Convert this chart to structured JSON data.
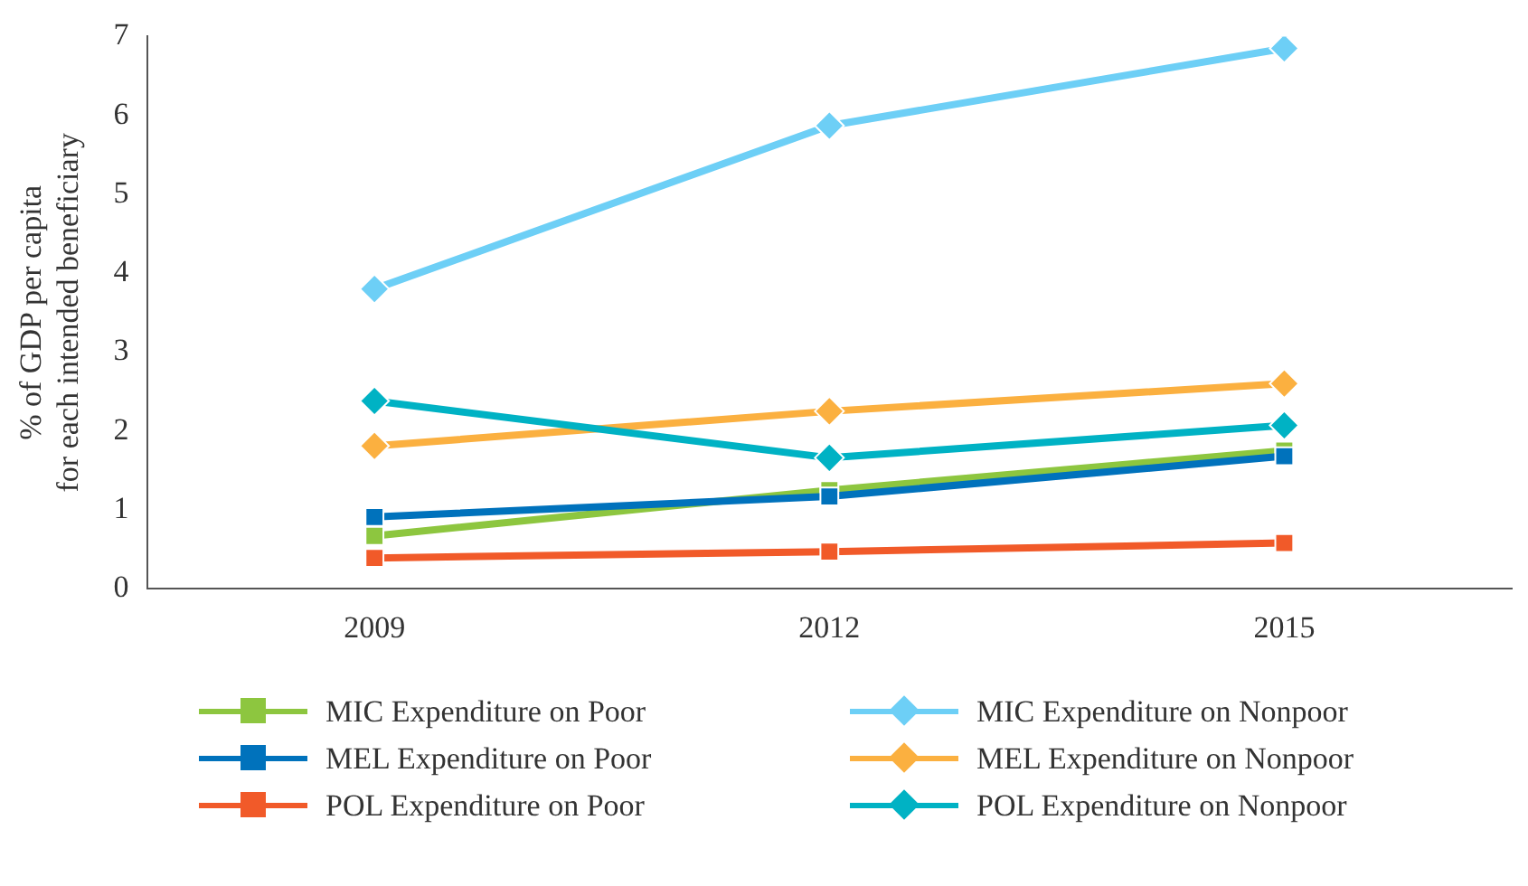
{
  "chart_data": {
    "type": "line",
    "ylabel": "% of GDP per capita\nfor each intended beneficiary",
    "categories": [
      "2009",
      "2012",
      "2015"
    ],
    "ylim": [
      0,
      7
    ],
    "yticks": [
      0,
      1,
      2,
      3,
      4,
      5,
      6,
      7
    ],
    "grid": false,
    "legend": "bottom",
    "line_style": "solid",
    "series": [
      {
        "name": "MIC Expenditure on Poor",
        "color": "#8dc63f",
        "marker": "square",
        "values": [
          0.67,
          1.25,
          1.75
        ]
      },
      {
        "name": "MIC Expenditure on Nonpoor",
        "color": "#6dcff6",
        "marker": "diamond",
        "values": [
          3.8,
          5.87,
          6.85
        ]
      },
      {
        "name": "MEL Expenditure on Poor",
        "color": "#0072bc",
        "marker": "square",
        "values": [
          0.91,
          1.17,
          1.68
        ]
      },
      {
        "name": "MEL Expenditure on Nonpoor",
        "color": "#fbb040",
        "marker": "diamond",
        "values": [
          1.81,
          2.25,
          2.6
        ]
      },
      {
        "name": "POL Expenditure on Poor",
        "color": "#f15a29",
        "marker": "square",
        "values": [
          0.39,
          0.47,
          0.58
        ]
      },
      {
        "name": "POL Expenditure on Nonpoor",
        "color": "#00b2c4",
        "marker": "diamond",
        "values": [
          2.38,
          1.66,
          2.07
        ]
      }
    ]
  }
}
